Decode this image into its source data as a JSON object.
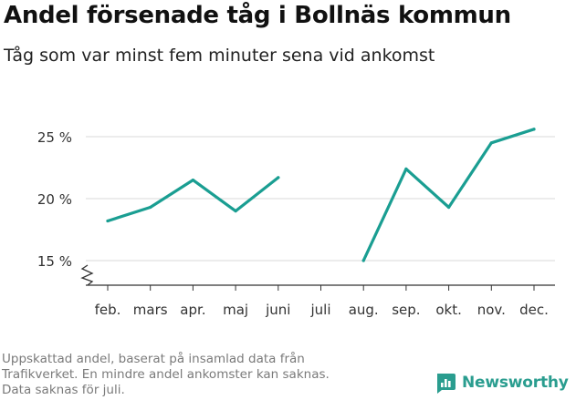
{
  "header": {
    "title": "Andel försenade tåg i Bollnäs kommun",
    "subtitle": "Tåg som var minst fem minuter sena vid ankomst"
  },
  "footnote": {
    "lines": [
      "Uppskattad andel, baserat på insamlad data från",
      "Trafikverket. En mindre andel ankomster kan saknas.",
      "Data saknas för juli."
    ]
  },
  "brand": {
    "name": "Newsworthy",
    "icon": "newsworthy-logo-icon",
    "color": "#2a9d8f"
  },
  "chart_data": {
    "type": "line",
    "categories": [
      "feb.",
      "mars",
      "apr.",
      "maj",
      "juni",
      "juli",
      "aug.",
      "sep.",
      "okt.",
      "nov.",
      "dec."
    ],
    "series": [
      {
        "values": [
          18.2,
          19.3,
          21.5,
          19.0,
          21.7,
          null,
          15.0,
          22.4,
          19.3,
          24.5,
          25.6
        ],
        "color": "#1a9e92"
      }
    ],
    "ylim": [
      13,
      26.5
    ],
    "yticks": [
      15,
      20,
      25
    ],
    "ytick_labels": [
      "15 %",
      "20 %",
      "25 %"
    ],
    "y_axis_broken": true,
    "grid": true,
    "xlabel": "",
    "ylabel": ""
  }
}
